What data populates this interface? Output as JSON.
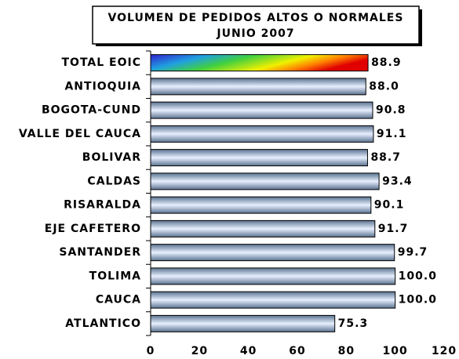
{
  "chart_data": {
    "type": "bar",
    "orientation": "horizontal",
    "title": [
      "VOLUMEN DE PEDIDOS ALTOS O NORMALES",
      "JUNIO 2007"
    ],
    "categories": [
      "TOTAL EOIC",
      "ANTIOQUIA",
      "BOGOTA-CUND",
      "VALLE DEL CAUCA",
      "BOLIVAR",
      "CALDAS",
      "RISARALDA",
      "EJE CAFETERO",
      "SANTANDER",
      "TOLIMA",
      "CAUCA",
      "ATLANTICO"
    ],
    "values": [
      88.9,
      88,
      90.8,
      91.1,
      88.7,
      93.4,
      90.1,
      91.7,
      99.7,
      100,
      100,
      75.3
    ],
    "value_labels": [
      "88.9",
      "88.0",
      "90.8",
      "91.1",
      "88.7",
      "93.4",
      "90.1",
      "91.7",
      "99.7",
      "100.0",
      "100.0",
      "75.3"
    ],
    "color": "#5a7290",
    "xlim": [
      0,
      120
    ],
    "xticks": [
      0,
      20,
      40,
      60,
      80,
      100,
      120
    ]
  }
}
